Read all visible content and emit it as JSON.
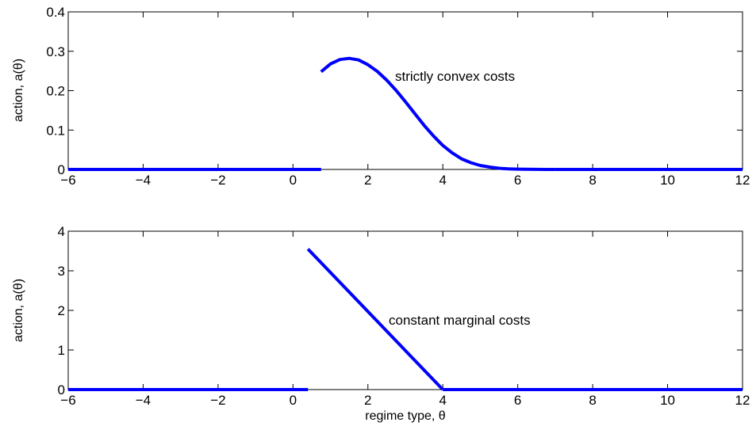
{
  "chart_data": [
    {
      "type": "line",
      "xlim": [
        -6,
        12
      ],
      "ylim": [
        0,
        0.4
      ],
      "xticks": [
        "−6",
        "−4",
        "−2",
        "0",
        "2",
        "4",
        "6",
        "8",
        "10",
        "12"
      ],
      "yticks": [
        "0",
        "0.1",
        "0.2",
        "0.3",
        "0.4"
      ],
      "ylabel": "action, a(θ)",
      "xlabel": "",
      "annotation": "strictly convex costs",
      "series": [
        {
          "color": "#0000ff",
          "segments": [
            {
              "x": [
                -6,
                0.75
              ],
              "y": [
                0,
                0
              ]
            },
            {
              "x": [
                0.75,
                1.0,
                1.25,
                1.5,
                1.75,
                2.0,
                2.25,
                2.5,
                2.75,
                3.0,
                3.25,
                3.5,
                3.75,
                4.0,
                4.25,
                4.5,
                4.75,
                5.0,
                5.25,
                5.5,
                5.75,
                6.0,
                6.25,
                6.5,
                6.75,
                7.0
              ],
              "y": [
                0.248,
                0.268,
                0.279,
                0.282,
                0.278,
                0.266,
                0.249,
                0.227,
                0.201,
                0.172,
                0.142,
                0.112,
                0.085,
                0.061,
                0.042,
                0.027,
                0.017,
                0.01,
                0.006,
                0.003,
                0.0015,
                0.0008,
                0.0004,
                0.0002,
                0.0001,
                0
              ]
            },
            {
              "x": [
                7.0,
                12
              ],
              "y": [
                0,
                0
              ]
            }
          ]
        }
      ]
    },
    {
      "type": "line",
      "xlim": [
        -6,
        12
      ],
      "ylim": [
        0,
        4
      ],
      "xticks": [
        "−6",
        "−4",
        "−2",
        "0",
        "2",
        "4",
        "6",
        "8",
        "10",
        "12"
      ],
      "yticks": [
        "0",
        "1",
        "2",
        "3",
        "4"
      ],
      "ylabel": "action, a(θ)",
      "xlabel": "regime type, θ",
      "annotation": "constant marginal costs",
      "series": [
        {
          "color": "#0000ff",
          "segments": [
            {
              "x": [
                -6,
                0.4
              ],
              "y": [
                0,
                0
              ]
            },
            {
              "x": [
                0.4,
                4.0
              ],
              "y": [
                3.55,
                0
              ]
            },
            {
              "x": [
                4.0,
                12
              ],
              "y": [
                0,
                0
              ]
            }
          ]
        }
      ]
    }
  ]
}
